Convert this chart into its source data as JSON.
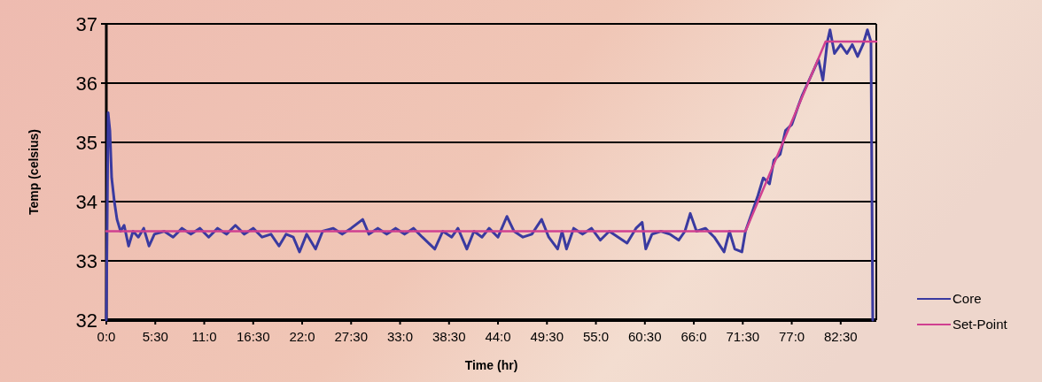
{
  "chart_data": {
    "type": "line",
    "xlabel": "Time (hr)",
    "ylabel": "Temp (celsius)",
    "xlim": [
      0,
      86.5
    ],
    "ylim": [
      32,
      37
    ],
    "yticks": [
      32,
      33,
      34,
      35,
      36,
      37
    ],
    "xticks": [
      {
        "value": 0,
        "label": "0:0"
      },
      {
        "value": 5.5,
        "label": "5:30"
      },
      {
        "value": 11,
        "label": "11:0"
      },
      {
        "value": 16.5,
        "label": "16:30"
      },
      {
        "value": 22,
        "label": "22:0"
      },
      {
        "value": 27.5,
        "label": "27:30"
      },
      {
        "value": 33,
        "label": "33:0"
      },
      {
        "value": 38.5,
        "label": "38:30"
      },
      {
        "value": 44,
        "label": "44:0"
      },
      {
        "value": 49.5,
        "label": "49:30"
      },
      {
        "value": 55,
        "label": "55:0"
      },
      {
        "value": 60.5,
        "label": "60:30"
      },
      {
        "value": 66,
        "label": "66:0"
      },
      {
        "value": 71.5,
        "label": "71:30"
      },
      {
        "value": 77,
        "label": "77:0"
      },
      {
        "value": 82.5,
        "label": "82:30"
      }
    ],
    "grid": "y",
    "legend": "right",
    "marker": "none",
    "line_style": "solid",
    "series": [
      {
        "name": "Core",
        "color": "#3a3aa0",
        "x": [
          0,
          0.2,
          0.4,
          0.6,
          0.9,
          1.2,
          1.6,
          2.0,
          2.5,
          3.0,
          3.6,
          4.2,
          4.8,
          5.4,
          6.5,
          7.5,
          8.5,
          9.5,
          10.5,
          11.5,
          12.5,
          13.5,
          14.5,
          15.5,
          16.5,
          17.5,
          18.5,
          19.4,
          20.2,
          21.0,
          21.7,
          22.5,
          23.5,
          24.3,
          25.5,
          26.5,
          27.5,
          28.8,
          29.5,
          30.5,
          31.5,
          32.5,
          33.5,
          34.5,
          35.5,
          36.9,
          37.8,
          38.8,
          39.5,
          40.5,
          41.3,
          42.2,
          43.0,
          44.0,
          45.0,
          45.8,
          46.8,
          47.8,
          48.9,
          49.7,
          50.7,
          51.2,
          51.7,
          52.5,
          53.5,
          54.5,
          55.5,
          56.5,
          57.5,
          58.5,
          59.5,
          60.2,
          60.6,
          61.3,
          62.3,
          63.3,
          64.3,
          65.0,
          65.6,
          66.3,
          67.3,
          68.3,
          69.4,
          70.0,
          70.6,
          71.4,
          71.8,
          72.5,
          73.2,
          73.8,
          74.5,
          75.0,
          75.7,
          76.3,
          77.0,
          77.7,
          78.2,
          78.8,
          79.4,
          80.0,
          80.5,
          81.0,
          81.3,
          81.8,
          82.5,
          83.2,
          83.8,
          84.4,
          85.0,
          85.5,
          85.9,
          86.1
        ],
        "values": [
          32,
          35.5,
          35.2,
          34.4,
          34.0,
          33.7,
          33.5,
          33.6,
          33.25,
          33.5,
          33.4,
          33.55,
          33.25,
          33.45,
          33.5,
          33.4,
          33.55,
          33.45,
          33.55,
          33.4,
          33.55,
          33.45,
          33.6,
          33.45,
          33.55,
          33.4,
          33.45,
          33.25,
          33.45,
          33.4,
          33.15,
          33.45,
          33.2,
          33.5,
          33.55,
          33.45,
          33.55,
          33.7,
          33.45,
          33.55,
          33.45,
          33.55,
          33.45,
          33.55,
          33.4,
          33.2,
          33.5,
          33.4,
          33.55,
          33.2,
          33.5,
          33.4,
          33.55,
          33.4,
          33.75,
          33.5,
          33.4,
          33.45,
          33.7,
          33.4,
          33.2,
          33.5,
          33.2,
          33.55,
          33.45,
          33.55,
          33.35,
          33.5,
          33.4,
          33.3,
          33.55,
          33.65,
          33.2,
          33.45,
          33.5,
          33.45,
          33.35,
          33.5,
          33.8,
          33.5,
          33.55,
          33.4,
          33.15,
          33.5,
          33.2,
          33.15,
          33.5,
          33.8,
          34.1,
          34.4,
          34.3,
          34.7,
          34.8,
          35.2,
          35.3,
          35.6,
          35.8,
          36.0,
          36.2,
          36.4,
          36.05,
          36.7,
          36.9,
          36.5,
          36.65,
          36.5,
          36.65,
          36.45,
          36.65,
          36.9,
          36.7,
          32
        ]
      },
      {
        "name": "Set-Point",
        "color": "#d04090",
        "x": [
          0,
          71.8,
          80.8,
          86.5
        ],
        "values": [
          33.5,
          33.5,
          36.7,
          36.7
        ]
      }
    ]
  }
}
